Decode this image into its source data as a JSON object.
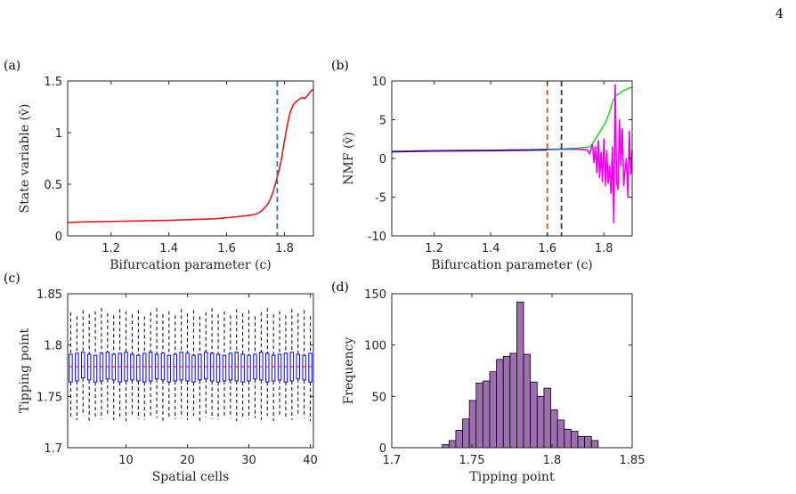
{
  "page": {
    "number": "4"
  },
  "chart_data": [
    {
      "panel": "(a)",
      "type": "line",
      "xlabel": "Bifurcation parameter (c)",
      "ylabel": "State variable (v̄)",
      "xlim": [
        1.05,
        1.9
      ],
      "ylim": [
        0,
        1.5
      ],
      "xticks": [
        "1.2",
        "1.4",
        "1.6",
        "1.8"
      ],
      "yticks": [
        "0",
        "0.5",
        "1",
        "1.5"
      ],
      "series": [
        {
          "color": "#e31a1c",
          "x": [
            1.05,
            1.1,
            1.2,
            1.3,
            1.4,
            1.5,
            1.55,
            1.6,
            1.65,
            1.68,
            1.7,
            1.72,
            1.74,
            1.75,
            1.76,
            1.77,
            1.78,
            1.79,
            1.8,
            1.81,
            1.82,
            1.83,
            1.84,
            1.85,
            1.86,
            1.87,
            1.88,
            1.89,
            1.9
          ],
          "y": [
            0.13,
            0.135,
            0.14,
            0.145,
            0.15,
            0.16,
            0.165,
            0.175,
            0.19,
            0.2,
            0.21,
            0.24,
            0.3,
            0.35,
            0.42,
            0.52,
            0.62,
            0.75,
            0.92,
            1.08,
            1.2,
            1.27,
            1.3,
            1.32,
            1.34,
            1.33,
            1.36,
            1.4,
            1.42
          ]
        }
      ],
      "annotations": [
        {
          "type": "vline",
          "x": 1.775,
          "color": "#1f77b4",
          "style": "dashed"
        }
      ]
    },
    {
      "panel": "(b)",
      "type": "line",
      "xlabel": "Bifurcation parameter (c)",
      "ylabel": "NMF (v̄)",
      "xlim": [
        1.05,
        1.9
      ],
      "ylim": [
        -10,
        10
      ],
      "xticks": [
        "1.2",
        "1.4",
        "1.6",
        "1.8"
      ],
      "yticks": [
        "-10",
        "-5",
        "0",
        "5",
        "10"
      ],
      "series": [
        {
          "color": "#22dd22",
          "x": [
            1.05,
            1.2,
            1.4,
            1.6,
            1.7,
            1.75,
            1.76,
            1.77,
            1.78,
            1.79,
            1.8,
            1.81,
            1.82,
            1.83,
            1.84,
            1.85,
            1.86,
            1.87,
            1.88,
            1.89,
            1.9
          ],
          "y": [
            0.9,
            1.0,
            1.05,
            1.15,
            1.3,
            1.5,
            1.9,
            2.5,
            3.1,
            3.7,
            4.3,
            5.0,
            6.0,
            7.2,
            8.0,
            8.3,
            8.5,
            8.8,
            8.9,
            9.1,
            9.2
          ]
        },
        {
          "color": "#ee00ee",
          "x": [
            1.05,
            1.2,
            1.4,
            1.6,
            1.7,
            1.74,
            1.75,
            1.76,
            1.765,
            1.77,
            1.775,
            1.78,
            1.785,
            1.79,
            1.795,
            1.8,
            1.805,
            1.81,
            1.815,
            1.82,
            1.825,
            1.83,
            1.835,
            1.84,
            1.845,
            1.85,
            1.855,
            1.86,
            1.865,
            1.87,
            1.875,
            1.88,
            1.885,
            1.89,
            1.895,
            1.9
          ],
          "y": [
            0.9,
            1.0,
            1.05,
            1.15,
            1.2,
            1.1,
            0.6,
            1.8,
            -0.5,
            1.5,
            -1.8,
            2.3,
            -2.5,
            0.8,
            -3.0,
            2.5,
            -3.5,
            1.0,
            -3.2,
            -1.0,
            -4.5,
            1.5,
            -8.3,
            9.5,
            -3.0,
            -4.0,
            5.0,
            -1.0,
            3.8,
            -3.5,
            -1.5,
            0.0,
            -5.0,
            3.5,
            -2.0,
            1.0
          ]
        },
        {
          "color": "#1f77b4",
          "x": [
            1.05,
            1.2,
            1.4,
            1.6,
            1.7
          ],
          "y": [
            0.9,
            1.0,
            1.05,
            1.15,
            1.25
          ]
        },
        {
          "color": "#4b0082",
          "x": [
            1.05,
            1.2,
            1.4,
            1.6
          ],
          "y": [
            0.85,
            0.95,
            1.0,
            1.1
          ]
        }
      ],
      "annotations": [
        {
          "type": "vline",
          "x": 1.6,
          "color": "#d95319",
          "style": "dashed"
        },
        {
          "type": "vline",
          "x": 1.65,
          "color": "#333333",
          "style": "dashed"
        }
      ]
    },
    {
      "panel": "(c)",
      "type": "box",
      "xlabel": "Spatial cells",
      "ylabel": "Tipping point",
      "xlim": [
        0.5,
        40.5
      ],
      "ylim": [
        1.7,
        1.85
      ],
      "xticks": [
        "10",
        "20",
        "30",
        "40"
      ],
      "yticks": [
        "1.7",
        "1.75",
        "1.8",
        "1.85"
      ],
      "count": 40,
      "q1": [
        1.764,
        1.765,
        1.768,
        1.766,
        1.764,
        1.765,
        1.767,
        1.766,
        1.764,
        1.765,
        1.766,
        1.765,
        1.764,
        1.765,
        1.767,
        1.766,
        1.764,
        1.765,
        1.766,
        1.765,
        1.764,
        1.766,
        1.767,
        1.765,
        1.764,
        1.765,
        1.766,
        1.765,
        1.764,
        1.765,
        1.767,
        1.766,
        1.764,
        1.765,
        1.766,
        1.764,
        1.765,
        1.767,
        1.766,
        1.764
      ],
      "median": 1.779,
      "q3": [
        1.791,
        1.792,
        1.793,
        1.791,
        1.79,
        1.792,
        1.793,
        1.791,
        1.792,
        1.793,
        1.791,
        1.79,
        1.792,
        1.793,
        1.791,
        1.792,
        1.79,
        1.791,
        1.793,
        1.792,
        1.79,
        1.791,
        1.793,
        1.792,
        1.791,
        1.79,
        1.792,
        1.793,
        1.791,
        1.79,
        1.791,
        1.793,
        1.792,
        1.79,
        1.791,
        1.792,
        1.793,
        1.791,
        1.79,
        1.792
      ],
      "whisker_low": [
        1.729,
        1.727,
        1.731,
        1.726,
        1.73,
        1.728,
        1.732,
        1.727,
        1.729,
        1.726,
        1.73,
        1.728,
        1.727,
        1.731,
        1.729,
        1.726,
        1.73,
        1.728,
        1.729,
        1.727,
        1.731,
        1.726,
        1.73,
        1.728,
        1.727,
        1.731,
        1.729,
        1.726,
        1.73,
        1.728,
        1.729,
        1.727,
        1.731,
        1.726,
        1.73,
        1.728,
        1.727,
        1.731,
        1.729,
        1.726
      ],
      "whisker_high": [
        1.832,
        1.828,
        1.834,
        1.83,
        1.833,
        1.836,
        1.831,
        1.829,
        1.835,
        1.833,
        1.83,
        1.834,
        1.828,
        1.832,
        1.836,
        1.83,
        1.833,
        1.829,
        1.835,
        1.831,
        1.834,
        1.828,
        1.832,
        1.836,
        1.83,
        1.833,
        1.829,
        1.835,
        1.831,
        1.834,
        1.828,
        1.832,
        1.836,
        1.83,
        1.833,
        1.829,
        1.835,
        1.831,
        1.834,
        1.828
      ],
      "box_color": "#0000ff",
      "median_color": "#ff0000"
    },
    {
      "panel": "(d)",
      "type": "bar",
      "xlabel": "Tipping point",
      "ylabel": "Frequency",
      "xlim": [
        1.7,
        1.85
      ],
      "ylim": [
        0,
        150
      ],
      "xticks": [
        "1.7",
        "1.75",
        "1.8",
        "1.85"
      ],
      "yticks": [
        "0",
        "50",
        "100",
        "150"
      ],
      "bin_start": 1.7315,
      "bin_width": 0.00423,
      "values": [
        3,
        7,
        17,
        28,
        46,
        63,
        65,
        74,
        86,
        89,
        92,
        142,
        91,
        64,
        50,
        58,
        37,
        27,
        18,
        16,
        11,
        11,
        7
      ],
      "color": "#9e6fb0"
    }
  ]
}
